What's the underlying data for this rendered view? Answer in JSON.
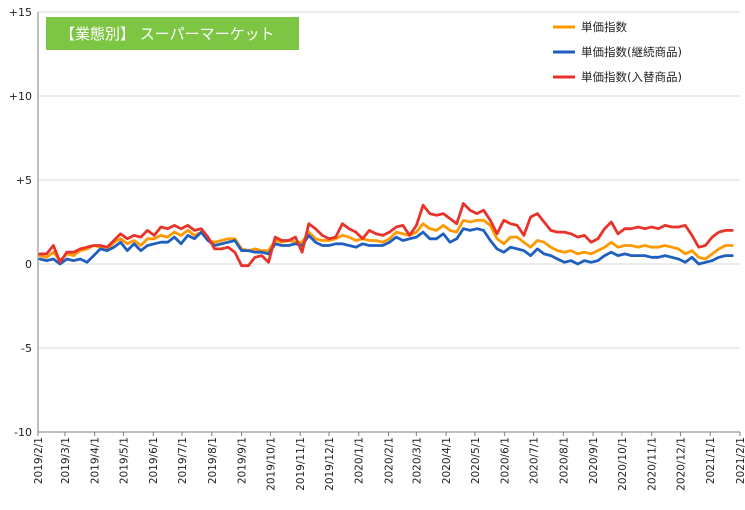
{
  "chart_data": {
    "type": "line",
    "title": "【業態別】 スーパーマーケット",
    "ylim": [
      -10,
      15
    ],
    "xlim": [
      "2019/2/1",
      "2021/2/1"
    ],
    "yticks": [
      {
        "value": 15,
        "label": "+15"
      },
      {
        "value": 10,
        "label": "+10"
      },
      {
        "value": 5,
        "label": "+5"
      },
      {
        "value": 0,
        "label": "0"
      },
      {
        "value": -5,
        "label": "-5"
      },
      {
        "value": -10,
        "label": "-10"
      }
    ],
    "xticks": [
      "2019/2/1",
      "2019/3/1",
      "2019/4/1",
      "2019/5/1",
      "2019/6/1",
      "2019/7/1",
      "2019/8/1",
      "2019/9/1",
      "2019/10/1",
      "2019/11/1",
      "2019/12/1",
      "2020/1/1",
      "2020/2/1",
      "2020/3/1",
      "2020/4/1",
      "2020/5/1",
      "2020/6/1",
      "2020/7/1",
      "2020/8/1",
      "2020/9/1",
      "2020/10/1",
      "2020/11/1",
      "2020/12/1",
      "2021/1/1",
      "2021/2/1"
    ],
    "grid": "horizontal",
    "legend_position": "top-right",
    "x": [
      "2019/2/3",
      "2019/2/10",
      "2019/2/17",
      "2019/2/24",
      "2019/3/3",
      "2019/3/10",
      "2019/3/17",
      "2019/3/24",
      "2019/3/31",
      "2019/4/7",
      "2019/4/14",
      "2019/4/21",
      "2019/4/28",
      "2019/5/5",
      "2019/5/12",
      "2019/5/19",
      "2019/5/26",
      "2019/6/2",
      "2019/6/9",
      "2019/6/16",
      "2019/6/23",
      "2019/6/30",
      "2019/7/7",
      "2019/7/14",
      "2019/7/21",
      "2019/7/28",
      "2019/8/4",
      "2019/8/11",
      "2019/8/18",
      "2019/8/25",
      "2019/9/1",
      "2019/9/8",
      "2019/9/15",
      "2019/9/22",
      "2019/9/29",
      "2019/10/6",
      "2019/10/13",
      "2019/10/20",
      "2019/10/27",
      "2019/11/3",
      "2019/11/10",
      "2019/11/17",
      "2019/11/24",
      "2019/12/1",
      "2019/12/8",
      "2019/12/15",
      "2019/12/22",
      "2019/12/29",
      "2020/1/5",
      "2020/1/12",
      "2020/1/19",
      "2020/1/26",
      "2020/2/2",
      "2020/2/9",
      "2020/2/16",
      "2020/2/23",
      "2020/3/1",
      "2020/3/8",
      "2020/3/15",
      "2020/3/22",
      "2020/3/29",
      "2020/4/5",
      "2020/4/12",
      "2020/4/19",
      "2020/4/26",
      "2020/5/3",
      "2020/5/10",
      "2020/5/17",
      "2020/5/24",
      "2020/5/31",
      "2020/6/7",
      "2020/6/14",
      "2020/6/21",
      "2020/6/28",
      "2020/7/5",
      "2020/7/12",
      "2020/7/19",
      "2020/7/26",
      "2020/8/2",
      "2020/8/9",
      "2020/8/16",
      "2020/8/23",
      "2020/8/30",
      "2020/9/6",
      "2020/9/13",
      "2020/9/20",
      "2020/9/27",
      "2020/10/4",
      "2020/10/11",
      "2020/10/18",
      "2020/10/25",
      "2020/11/1",
      "2020/11/8",
      "2020/11/15",
      "2020/11/22",
      "2020/11/29",
      "2020/12/6",
      "2020/12/13",
      "2020/12/20",
      "2020/12/27",
      "2021/1/3",
      "2021/1/10",
      "2021/1/17",
      "2021/1/24"
    ],
    "series": [
      {
        "name": "単価指数",
        "color": "#FF9900",
        "values": [
          0.5,
          0.4,
          0.7,
          0.2,
          0.6,
          0.5,
          0.8,
          0.9,
          1.1,
          1.0,
          0.8,
          1.3,
          1.5,
          1.2,
          1.4,
          1.1,
          1.5,
          1.5,
          1.7,
          1.6,
          1.9,
          1.7,
          2.0,
          1.7,
          1.9,
          1.4,
          1.3,
          1.4,
          1.5,
          1.5,
          0.9,
          0.8,
          0.9,
          0.8,
          0.8,
          1.4,
          1.3,
          1.4,
          1.3,
          1.3,
          1.9,
          1.5,
          1.4,
          1.4,
          1.5,
          1.7,
          1.6,
          1.4,
          1.5,
          1.4,
          1.4,
          1.3,
          1.5,
          1.9,
          1.8,
          1.7,
          1.9,
          2.4,
          2.1,
          2.0,
          2.3,
          2.0,
          1.9,
          2.6,
          2.5,
          2.6,
          2.6,
          2.3,
          1.5,
          1.2,
          1.6,
          1.6,
          1.3,
          1.0,
          1.4,
          1.3,
          1.0,
          0.8,
          0.7,
          0.8,
          0.6,
          0.7,
          0.6,
          0.8,
          1.0,
          1.3,
          1.0,
          1.1,
          1.1,
          1.0,
          1.1,
          1.0,
          1.0,
          1.1,
          1.0,
          0.9,
          0.6,
          0.8,
          0.4,
          0.3,
          0.6,
          0.9,
          1.1,
          1.1
        ]
      },
      {
        "name": "単価指数(継続商品)",
        "color": "#1F5FBF",
        "values": [
          0.3,
          0.2,
          0.3,
          0.0,
          0.3,
          0.2,
          0.3,
          0.1,
          0.5,
          0.9,
          0.8,
          1.0,
          1.3,
          0.8,
          1.2,
          0.8,
          1.1,
          1.2,
          1.3,
          1.3,
          1.6,
          1.2,
          1.7,
          1.5,
          1.9,
          1.4,
          1.1,
          1.2,
          1.3,
          1.4,
          0.8,
          0.8,
          0.7,
          0.7,
          0.6,
          1.2,
          1.1,
          1.1,
          1.2,
          1.1,
          1.7,
          1.3,
          1.1,
          1.1,
          1.2,
          1.2,
          1.1,
          1.0,
          1.2,
          1.1,
          1.1,
          1.1,
          1.3,
          1.6,
          1.4,
          1.5,
          1.6,
          1.9,
          1.5,
          1.5,
          1.8,
          1.3,
          1.5,
          2.1,
          2.0,
          2.1,
          2.0,
          1.4,
          0.9,
          0.7,
          1.0,
          0.9,
          0.8,
          0.5,
          0.9,
          0.6,
          0.5,
          0.3,
          0.1,
          0.2,
          0.0,
          0.2,
          0.1,
          0.2,
          0.5,
          0.7,
          0.5,
          0.6,
          0.5,
          0.5,
          0.5,
          0.4,
          0.4,
          0.5,
          0.4,
          0.3,
          0.1,
          0.4,
          0.0,
          0.1,
          0.2,
          0.4,
          0.5,
          0.5
        ]
      },
      {
        "name": "単価指数(入替商品)",
        "color": "#E8332A",
        "values": [
          0.6,
          0.6,
          1.1,
          0.1,
          0.7,
          0.7,
          0.9,
          1.0,
          1.1,
          1.1,
          1.0,
          1.4,
          1.8,
          1.5,
          1.7,
          1.6,
          2.0,
          1.7,
          2.2,
          2.1,
          2.3,
          2.1,
          2.3,
          2.0,
          2.1,
          1.6,
          0.9,
          0.9,
          1.0,
          0.7,
          -0.1,
          -0.1,
          0.4,
          0.5,
          0.1,
          1.6,
          1.4,
          1.4,
          1.6,
          0.7,
          2.4,
          2.1,
          1.7,
          1.5,
          1.6,
          2.4,
          2.1,
          1.9,
          1.5,
          2.0,
          1.8,
          1.7,
          1.9,
          2.2,
          2.3,
          1.7,
          2.3,
          3.5,
          3.0,
          2.9,
          3.0,
          2.7,
          2.4,
          3.6,
          3.2,
          3.0,
          3.2,
          2.6,
          1.8,
          2.6,
          2.4,
          2.3,
          1.7,
          2.8,
          3.0,
          2.5,
          2.0,
          1.9,
          1.9,
          1.8,
          1.6,
          1.7,
          1.3,
          1.5,
          2.1,
          2.5,
          1.8,
          2.1,
          2.1,
          2.2,
          2.1,
          2.2,
          2.1,
          2.3,
          2.2,
          2.2,
          2.3,
          1.7,
          1.0,
          1.1,
          1.6,
          1.9,
          2.0,
          2.0
        ]
      }
    ]
  }
}
